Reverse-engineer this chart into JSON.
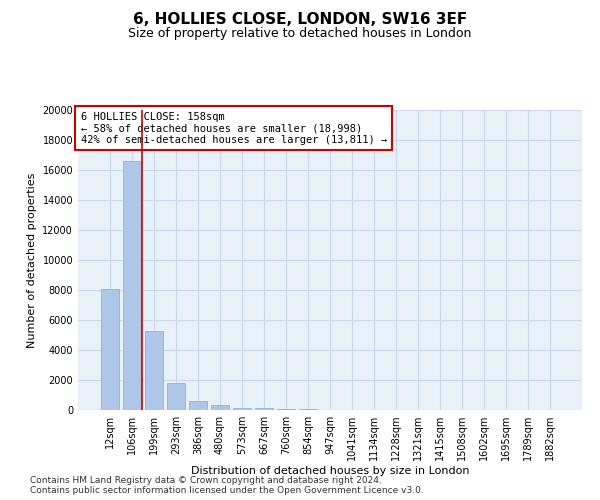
{
  "title_line1": "6, HOLLIES CLOSE, LONDON, SW16 3EF",
  "title_line2": "Size of property relative to detached houses in London",
  "xlabel": "Distribution of detached houses by size in London",
  "ylabel": "Number of detached properties",
  "categories": [
    "12sqm",
    "106sqm",
    "199sqm",
    "293sqm",
    "386sqm",
    "480sqm",
    "573sqm",
    "667sqm",
    "760sqm",
    "854sqm",
    "947sqm",
    "1041sqm",
    "1134sqm",
    "1228sqm",
    "1321sqm",
    "1415sqm",
    "1508sqm",
    "1602sqm",
    "1695sqm",
    "1789sqm",
    "1882sqm"
  ],
  "values": [
    8050,
    16600,
    5300,
    1800,
    620,
    320,
    160,
    110,
    60,
    40,
    0,
    0,
    0,
    0,
    0,
    0,
    0,
    0,
    0,
    0,
    0
  ],
  "bar_color": "#aec6e8",
  "bar_edge_color": "#7bafd4",
  "grid_color": "#c8d8ea",
  "background_color": "#e8f0f8",
  "vline_color": "#cc0000",
  "vline_x": 1.45,
  "annotation_text_line1": "6 HOLLIES CLOSE: 158sqm",
  "annotation_text_line2": "← 58% of detached houses are smaller (18,998)",
  "annotation_text_line3": "42% of semi-detached houses are larger (13,811) →",
  "annotation_box_facecolor": "white",
  "annotation_box_edgecolor": "#cc0000",
  "ylim": [
    0,
    20000
  ],
  "yticks": [
    0,
    2000,
    4000,
    6000,
    8000,
    10000,
    12000,
    14000,
    16000,
    18000,
    20000
  ],
  "footnote": "Contains HM Land Registry data © Crown copyright and database right 2024.\nContains public sector information licensed under the Open Government Licence v3.0.",
  "title_fontsize": 11,
  "subtitle_fontsize": 9,
  "ylabel_fontsize": 8,
  "xlabel_fontsize": 8,
  "tick_fontsize": 7,
  "annotation_fontsize": 7.5,
  "footnote_fontsize": 6.5
}
